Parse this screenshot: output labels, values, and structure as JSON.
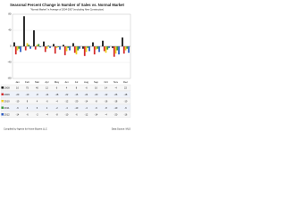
{
  "chart_data": {
    "type": "bar",
    "title": "Seasonal Percent Change in Number of Sales vs. Normal Market",
    "subtitle": "\"Normal Market\" is Average of 2004-2007 (excluding New Construction)",
    "categories": [
      "Jan",
      "Feb",
      "Mar",
      "Apr",
      "May",
      "Jun",
      "Jul",
      "Aug",
      "Sep",
      "Oct",
      "Nov",
      "Dec"
    ],
    "series": [
      {
        "name": "2008",
        "color": "#111111",
        "values": [
          10,
          75,
          40,
          12,
          6,
          4,
          8,
          -6,
          10,
          14,
          -4,
          22
        ]
      },
      {
        "name": "2009",
        "color": "#d42a2a",
        "values": [
          -20,
          -10,
          -8,
          -14,
          -18,
          -22,
          -16,
          -24,
          -20,
          -12,
          -26,
          -18
        ]
      },
      {
        "name": "2010",
        "color": "#f0d020",
        "values": [
          -10,
          8,
          4,
          -6,
          -4,
          -12,
          -20,
          -14,
          -8,
          -16,
          -18,
          -10
        ]
      },
      {
        "name": "2011",
        "color": "#3a9a3a",
        "values": [
          -6,
          4,
          6,
          2,
          -2,
          -4,
          -10,
          -4,
          -6,
          -8,
          -10,
          -6
        ]
      },
      {
        "name": "2012",
        "color": "#2e5cc4",
        "values": [
          -14,
          -6,
          -2,
          -4,
          -8,
          -10,
          -6,
          -12,
          -14,
          -4,
          -20,
          -16
        ]
      }
    ],
    "ylim": [
      -80,
      80
    ],
    "yticks": [
      -80,
      -40,
      0,
      40,
      80
    ],
    "grid": true,
    "footer_left": "Compiled by Agents for Home Buyers LLC",
    "footer_right": "Data Source: MLS"
  }
}
